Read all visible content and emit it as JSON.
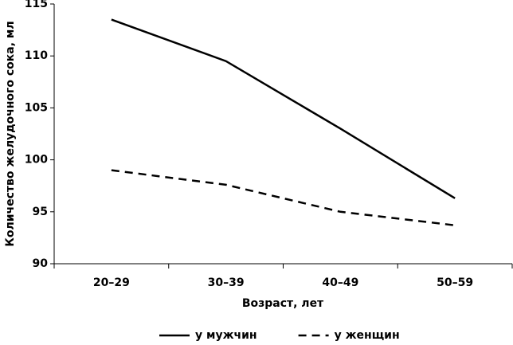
{
  "chart_data": {
    "type": "line",
    "y_label": "Количество желудочного сока, мл",
    "x_label": "Возраст, лет",
    "categories": [
      "20–29",
      "30–39",
      "40–49",
      "50–59"
    ],
    "series": [
      {
        "name": "у мужчин",
        "color": "#000000",
        "dash": "solid",
        "values": [
          113.5,
          109.5,
          103,
          96.3
        ]
      },
      {
        "name": "у женщин",
        "color": "#000000",
        "dash": "dashed",
        "values": [
          99,
          97.6,
          95,
          93.7
        ]
      }
    ],
    "ylim": [
      90,
      115
    ],
    "yticks": [
      90,
      95,
      100,
      105,
      110,
      115
    ],
    "grid": false,
    "legend": "bottom"
  }
}
